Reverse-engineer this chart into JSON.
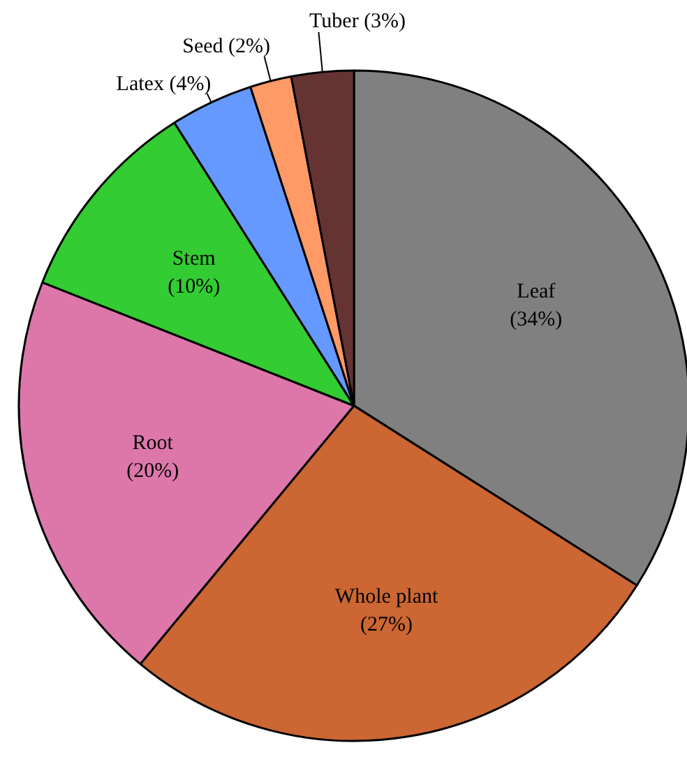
{
  "chart_data": {
    "type": "pie",
    "categories": [
      "Leaf",
      "Whole plant",
      "Root",
      "Stem",
      "Latex",
      "Seed",
      "Tuber"
    ],
    "values": [
      34,
      27,
      20,
      10,
      4,
      2,
      3
    ],
    "colors": [
      "#808080",
      "#cc6633",
      "#dd77aa",
      "#33cc33",
      "#6699ff",
      "#ff9966",
      "#663333"
    ],
    "value_labels": [
      "(34%)",
      "(27%)",
      "(20%)",
      "(10%)",
      "(4%)",
      "(2%)",
      "(3%)"
    ]
  }
}
